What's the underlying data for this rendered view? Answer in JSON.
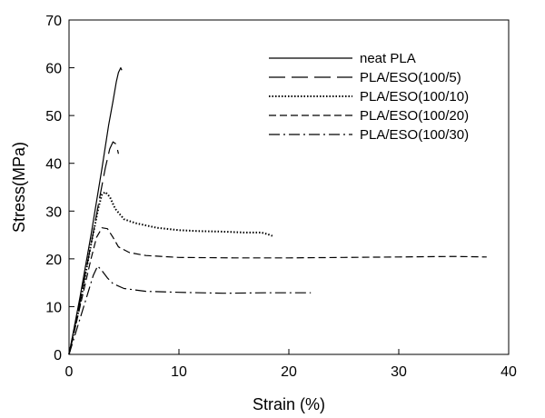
{
  "chart_data": {
    "type": "line",
    "xlabel": "Strain (%)",
    "ylabel": "Stress(MPa)",
    "xlim": [
      0,
      40
    ],
    "ylim": [
      0,
      70
    ],
    "xticks": [
      0,
      10,
      20,
      30,
      40
    ],
    "yticks": [
      0,
      10,
      20,
      30,
      40,
      50,
      60,
      70
    ],
    "grid": false,
    "legend_position": "top-right",
    "series": [
      {
        "name": "neat PLA",
        "dash": "solid",
        "x": [
          0,
          1.0,
          2.0,
          3.0,
          3.6,
          4.0,
          4.3,
          4.5,
          4.7,
          4.8
        ],
        "y": [
          0,
          12,
          25,
          39,
          48,
          53,
          57,
          59,
          60,
          59.5
        ]
      },
      {
        "name": "PLA/ESO(100/5)",
        "dash": "longdash",
        "x": [
          0,
          1.0,
          2.0,
          2.8,
          3.3,
          3.7,
          4.0,
          4.3,
          4.5
        ],
        "y": [
          0,
          11,
          23,
          33,
          39,
          43,
          44.5,
          44,
          42
        ]
      },
      {
        "name": "PLA/ESO(100/10)",
        "dash": "dotted",
        "x": [
          0,
          1.0,
          2.0,
          2.7,
          3.0,
          3.3,
          3.7,
          4.2,
          5.0,
          6.0,
          8.0,
          10.0,
          12.0,
          14.0,
          16.0,
          17.5,
          18.0,
          18.5
        ],
        "y": [
          0,
          10.5,
          23,
          31,
          33.5,
          34,
          33,
          30.5,
          28.3,
          27.5,
          26.5,
          26.0,
          25.8,
          25.7,
          25.5,
          25.5,
          25.2,
          24.8
        ]
      },
      {
        "name": "PLA/ESO(100/20)",
        "dash": "dashed",
        "x": [
          0,
          1.0,
          2.0,
          2.5,
          3.0,
          3.5,
          4.0,
          4.5,
          5.5,
          7.0,
          10.0,
          15.0,
          20.0,
          25.0,
          30.0,
          35.0,
          38.0
        ],
        "y": [
          0,
          10,
          20,
          24.5,
          26.5,
          26.3,
          24.5,
          22.5,
          21.3,
          20.7,
          20.3,
          20.2,
          20.2,
          20.3,
          20.4,
          20.5,
          20.4
        ]
      },
      {
        "name": "PLA/ESO(100/30)",
        "dash": "dashdot",
        "x": [
          0,
          0.8,
          1.6,
          2.2,
          2.6,
          3.0,
          3.5,
          4.0,
          5.0,
          7.0,
          10.0,
          14.0,
          18.0,
          22.0
        ],
        "y": [
          0,
          6,
          12,
          16.5,
          18.5,
          17.5,
          16,
          14.8,
          13.8,
          13.2,
          13.0,
          12.8,
          12.9,
          12.9
        ]
      }
    ]
  }
}
